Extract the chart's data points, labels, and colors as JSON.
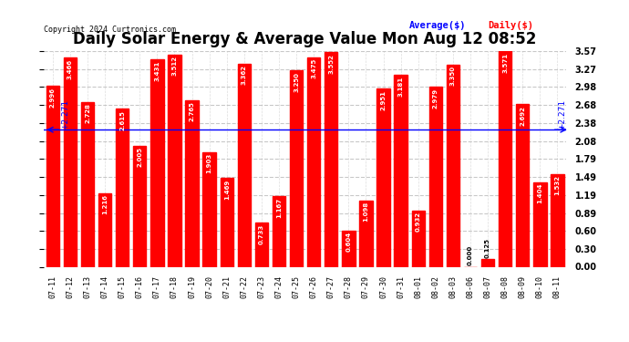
{
  "title": "Daily Solar Energy & Average Value Mon Aug 12 08:52",
  "copyright": "Copyright 2024 Curtronics.com",
  "average_value": 2.271,
  "average_label": "Average($)",
  "daily_label": "Daily($)",
  "bar_color": "#ff0000",
  "avg_line_color": "#0000ff",
  "categories": [
    "07-11",
    "07-12",
    "07-13",
    "07-14",
    "07-15",
    "07-16",
    "07-17",
    "07-18",
    "07-19",
    "07-20",
    "07-21",
    "07-22",
    "07-23",
    "07-24",
    "07-25",
    "07-26",
    "07-27",
    "07-28",
    "07-29",
    "07-30",
    "07-31",
    "08-01",
    "08-02",
    "08-03",
    "08-06",
    "08-07",
    "08-08",
    "08-09",
    "08-10",
    "08-11"
  ],
  "values": [
    2.996,
    3.466,
    2.728,
    1.216,
    2.615,
    2.005,
    3.431,
    3.512,
    2.765,
    1.903,
    1.469,
    3.362,
    0.733,
    1.167,
    3.25,
    3.475,
    3.552,
    0.604,
    1.098,
    2.951,
    3.181,
    0.932,
    2.979,
    3.35,
    0.0,
    0.125,
    3.571,
    2.692,
    1.404,
    1.532
  ],
  "ylim": [
    0.0,
    3.57
  ],
  "yticks": [
    0.0,
    0.3,
    0.6,
    0.89,
    1.19,
    1.49,
    1.79,
    2.08,
    2.38,
    2.68,
    2.98,
    3.27,
    3.57
  ],
  "background_color": "#ffffff",
  "grid_color": "#bbbbbb",
  "title_fontsize": 12,
  "bar_width": 0.75
}
